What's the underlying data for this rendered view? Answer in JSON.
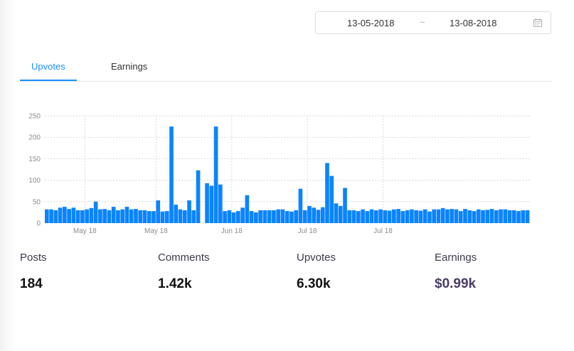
{
  "date_range": {
    "start": "13-05-2018",
    "separator": "~",
    "end": "13-08-2018",
    "icon": "calendar-icon"
  },
  "tabs": [
    {
      "label": "Upvotes",
      "active": true
    },
    {
      "label": "Earnings",
      "active": false
    }
  ],
  "colors": {
    "accent": "#1890ff",
    "bar": "#0a84ff",
    "grid": "#d9d9d9"
  },
  "chart_data": {
    "type": "bar",
    "title": "",
    "xlabel": "",
    "ylabel": "",
    "ylim": [
      0,
      250
    ],
    "yticks": [
      0,
      50,
      100,
      150,
      200,
      250
    ],
    "grid": true,
    "xtick_labels": [
      "May 18",
      "May 18",
      "Jun 18",
      "Jul 18",
      "Jul 18"
    ],
    "series": [
      {
        "values": [
          32,
          32,
          30,
          36,
          38,
          33,
          36,
          30,
          30,
          32,
          35,
          50,
          32,
          33,
          30,
          38,
          30,
          32,
          38,
          32,
          33,
          30,
          30,
          28,
          28,
          53,
          27,
          28,
          225,
          43,
          32,
          30,
          53,
          30,
          123,
          0,
          93,
          87,
          225,
          90,
          28,
          30,
          25,
          28,
          36,
          65,
          28,
          25,
          30,
          30,
          30,
          30,
          32,
          32,
          28,
          27,
          30,
          80,
          30,
          40,
          36,
          31,
          37,
          140,
          110,
          46,
          40,
          82,
          30,
          30,
          28,
          32,
          28,
          32,
          30,
          32,
          30,
          29,
          32,
          33,
          28,
          30,
          32,
          30,
          29,
          32,
          27,
          32,
          32,
          35,
          32,
          33,
          32,
          28,
          33,
          30,
          28,
          32,
          30,
          31,
          33,
          30,
          32,
          32,
          30,
          30,
          28,
          30,
          30
        ]
      }
    ]
  },
  "stats": [
    {
      "label": "Posts",
      "value": "184"
    },
    {
      "label": "Comments",
      "value": "1.42k"
    },
    {
      "label": "Upvotes",
      "value": "6.30k"
    },
    {
      "label": "Earnings",
      "value": "$0.99k"
    }
  ]
}
